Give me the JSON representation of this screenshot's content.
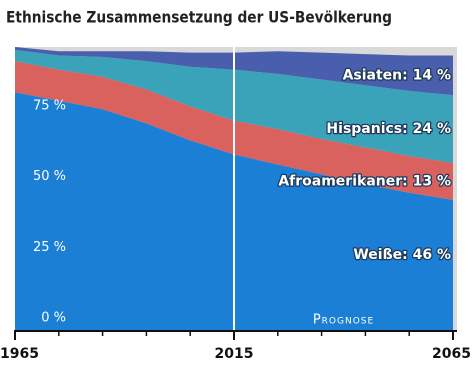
{
  "chart_data": {
    "type": "stacked-area",
    "title": "Ethnische Zusammensetzung der US-Bevölkerung",
    "x": [
      1965,
      1975,
      1985,
      1995,
      2005,
      2015,
      2025,
      2035,
      2045,
      2055,
      2065
    ],
    "series": [
      {
        "label": "Weiße: 46 %",
        "color": "#1b7fd6",
        "values": [
          84,
          81,
          78,
          73,
          67,
          62,
          58.5,
          55,
          51.5,
          48.5,
          46
        ]
      },
      {
        "label": "Afroamerikaner: 13 %",
        "color": "#d9625e",
        "values": [
          11,
          11,
          11.5,
          12,
          12,
          12,
          12.5,
          12.5,
          13,
          13,
          13
        ]
      },
      {
        "label": "Hispanics: 24 %",
        "color": "#3aa2b9",
        "values": [
          4,
          5,
          7,
          10,
          14,
          18,
          19.5,
          21,
          22,
          23,
          24
        ]
      },
      {
        "label": "Asiaten: 14 %",
        "color": "#4a5eae",
        "values": [
          1,
          1.5,
          2,
          3.5,
          5,
          6,
          8,
          9.5,
          11,
          12.5,
          14
        ]
      }
    ],
    "xlim": [
      1965,
      2065
    ],
    "xticks": [
      1965,
      2015,
      2065
    ],
    "xminorticks": [
      1975,
      1985,
      1995,
      2005,
      2025,
      2035,
      2045,
      2055
    ],
    "ylim": [
      0,
      100
    ],
    "yticks": [
      {
        "value": 0,
        "label": "0 %"
      },
      {
        "value": 25,
        "label": "25 %"
      },
      {
        "value": 50,
        "label": "50 %"
      },
      {
        "value": 75,
        "label": "75 %"
      }
    ],
    "forecast_start": 2015,
    "forecast_label": "Prognose"
  }
}
